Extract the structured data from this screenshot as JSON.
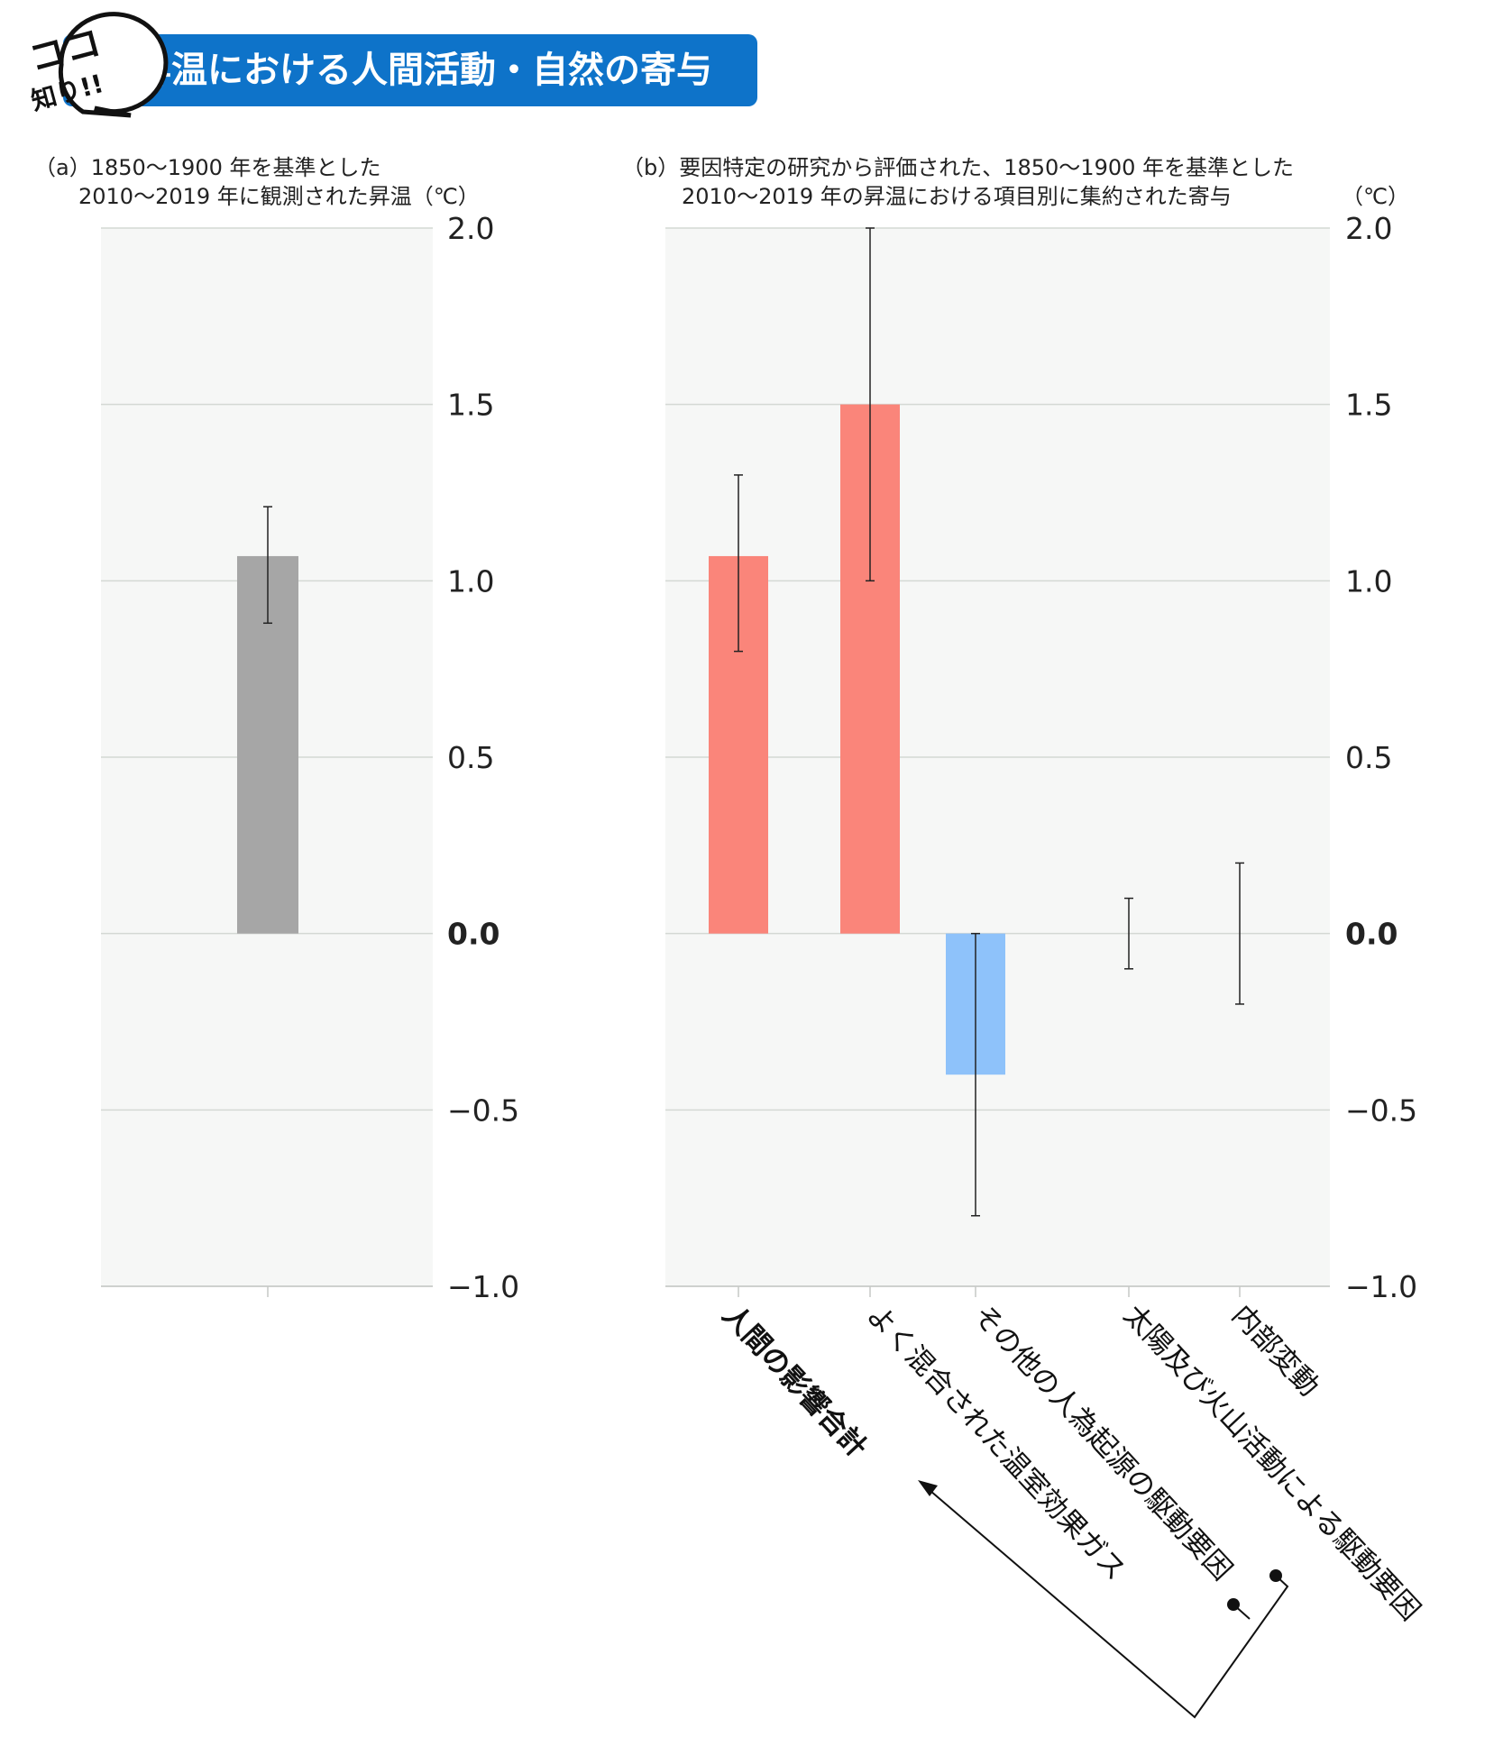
{
  "header": {
    "badge_line1": "ココ",
    "badge_line2": "知り!!",
    "title": "昇温における人間活動・自然の寄与"
  },
  "colors": {
    "header_bg": "#0e73c9",
    "observed_bar": "#a6a6a6",
    "human_bars": "#fa857a",
    "other_bar": "#8ec2fa",
    "plot_bg": "#f6f7f6"
  },
  "panel_a": {
    "caption_line1": "（a）1850〜1900 年を基準とした",
    "caption_line2": "2010〜2019 年に観測された昇温（℃）"
  },
  "panel_b": {
    "caption_line1": "（b）要因特定の研究から評価された、1850〜1900 年を基準とした",
    "caption_line2": "2010〜2019 年の昇温における項目別に集約された寄与",
    "unit": "（℃）"
  },
  "chart_data": [
    {
      "type": "bar",
      "title": "（a）1850〜1900 年を基準とした 2010〜2019 年に観測された昇温（℃）",
      "categories": [
        ""
      ],
      "values": [
        1.07
      ],
      "error_low": [
        0.88
      ],
      "error_high": [
        1.21
      ],
      "ylim": [
        -1.0,
        2.0
      ],
      "yticks": [
        "2.0",
        "1.5",
        "1.0",
        "0.5",
        "0.0",
        "−0.5",
        "−1.0"
      ],
      "grid": true
    },
    {
      "type": "bar",
      "title": "（b）要因特定の研究から評価された、1850〜1900 年を基準とした 2010〜2019 年の昇温における項目別に集約された寄与",
      "ylabel": "（℃）",
      "categories": [
        "人間の影響合計",
        "よく混合された温室効果ガス",
        "その他の人為起源の駆動要因",
        "太陽及び火山活動による駆動要因",
        "内部変動"
      ],
      "values": [
        1.07,
        1.5,
        -0.4,
        null,
        null
      ],
      "error_low": [
        0.8,
        1.0,
        -0.8,
        -0.1,
        -0.2
      ],
      "error_high": [
        1.3,
        2.0,
        0.0,
        0.1,
        0.2
      ],
      "ylim": [
        -1.0,
        2.0
      ],
      "yticks": [
        "2.0",
        "1.5",
        "1.0",
        "0.5",
        "0.0",
        "−0.5",
        "−1.0"
      ],
      "grid": true
    }
  ]
}
